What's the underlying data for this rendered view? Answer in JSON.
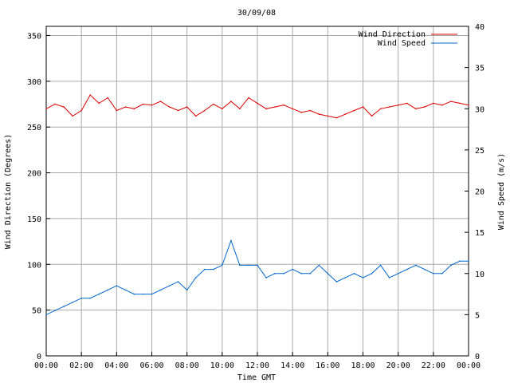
{
  "chart_data": {
    "type": "line",
    "title": "30/09/08",
    "xlabel": "Time GMT",
    "ylabel_left": "Wind Direction (Degrees)",
    "ylabel_right": "Wind Speed (m/s)",
    "x_ticks": [
      "00:00",
      "02:00",
      "04:00",
      "06:00",
      "08:00",
      "10:00",
      "12:00",
      "14:00",
      "16:00",
      "18:00",
      "20:00",
      "22:00",
      "00:00"
    ],
    "x_range_hours": [
      0,
      24
    ],
    "y_left_ticks": [
      "0",
      "50",
      "100",
      "150",
      "200",
      "250",
      "300",
      "350"
    ],
    "y_left_range": [
      0,
      360
    ],
    "y_right_ticks": [
      "0",
      "5",
      "10",
      "15",
      "20",
      "25",
      "30",
      "35",
      "40"
    ],
    "y_right_range": [
      0,
      40
    ],
    "grid": true,
    "legend_position": "top-right",
    "colors": {
      "direction": "#dd0000",
      "speed": "#0066cc",
      "grid": "#aaaaaa"
    },
    "series": [
      {
        "name": "Wind Direction",
        "axis": "left",
        "x": [
          0,
          0.5,
          1,
          1.5,
          2,
          2.5,
          3,
          3.5,
          4,
          4.5,
          5,
          5.5,
          6,
          6.5,
          7,
          7.5,
          8,
          8.5,
          9,
          9.5,
          10,
          10.5,
          11,
          11.5,
          12,
          12.5,
          13,
          13.5,
          14,
          14.5,
          15,
          15.5,
          16,
          16.5,
          17,
          17.5,
          18,
          18.5,
          19,
          19.5,
          20,
          20.5,
          21,
          21.5,
          22,
          22.5,
          23,
          23.5,
          24
        ],
        "values": [
          270,
          275,
          272,
          262,
          268,
          285,
          276,
          282,
          268,
          272,
          270,
          275,
          274,
          278,
          272,
          268,
          272,
          262,
          268,
          275,
          270,
          278,
          270,
          282,
          276,
          270,
          272,
          274,
          270,
          266,
          268,
          264,
          262,
          260,
          264,
          268,
          272,
          262,
          270,
          272,
          274,
          276,
          270,
          272,
          276,
          274,
          278,
          276,
          274
        ]
      },
      {
        "name": "Wind Speed",
        "axis": "right",
        "x": [
          0,
          0.5,
          1,
          1.5,
          2,
          2.5,
          3,
          3.5,
          4,
          4.5,
          5,
          5.5,
          6,
          6.5,
          7,
          7.5,
          8,
          8.5,
          9,
          9.5,
          10,
          10.5,
          11,
          11.5,
          12,
          12.5,
          13,
          13.5,
          14,
          14.5,
          15,
          15.5,
          16,
          16.5,
          17,
          17.5,
          18,
          18.5,
          19,
          19.5,
          20,
          20.5,
          21,
          21.5,
          22,
          22.5,
          23,
          23.5,
          24
        ],
        "values": [
          5,
          5.5,
          6,
          6.5,
          7,
          7,
          7.5,
          8,
          8.5,
          8,
          7.5,
          7.5,
          7.5,
          8,
          8.5,
          9,
          8,
          9.5,
          10.5,
          10.5,
          11,
          14,
          11,
          11,
          11,
          9.5,
          10,
          10,
          10.5,
          10,
          10,
          11,
          10,
          9,
          9.5,
          10,
          9.5,
          10,
          11,
          9.5,
          10,
          10.5,
          11,
          10.5,
          10,
          10,
          11,
          11.5,
          11.5
        ]
      }
    ]
  }
}
